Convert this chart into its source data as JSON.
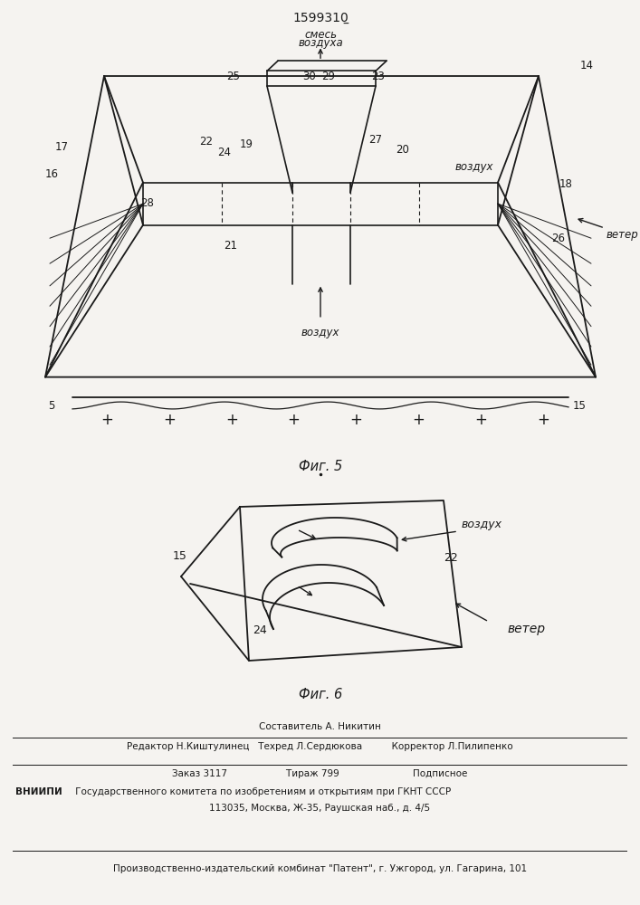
{
  "patent_number": "1599310",
  "fig5_caption": "Фиг. 5",
  "fig6_caption": "Фиг. 6",
  "bg_color": "#f5f3f0",
  "line_color": "#1a1a1a",
  "footer_lines": [
    "Составитель А. Никитин",
    "Редактор Н.Киштулинец   Техред Л.Сердюкова          Корректор Л.Пилипенко",
    "Заказ 3117                    Тираж 799                         Подписное",
    "ВНИИПИ Государственного комитета по изобретениям и открытиям при ГКНТ СССР",
    "113035, Москва, Ж-35, Раушская наб., д. 4/5",
    "Производственно-издательский комбинат \"Патент\", г. Ужгород, ул. Гагарина, 101"
  ]
}
